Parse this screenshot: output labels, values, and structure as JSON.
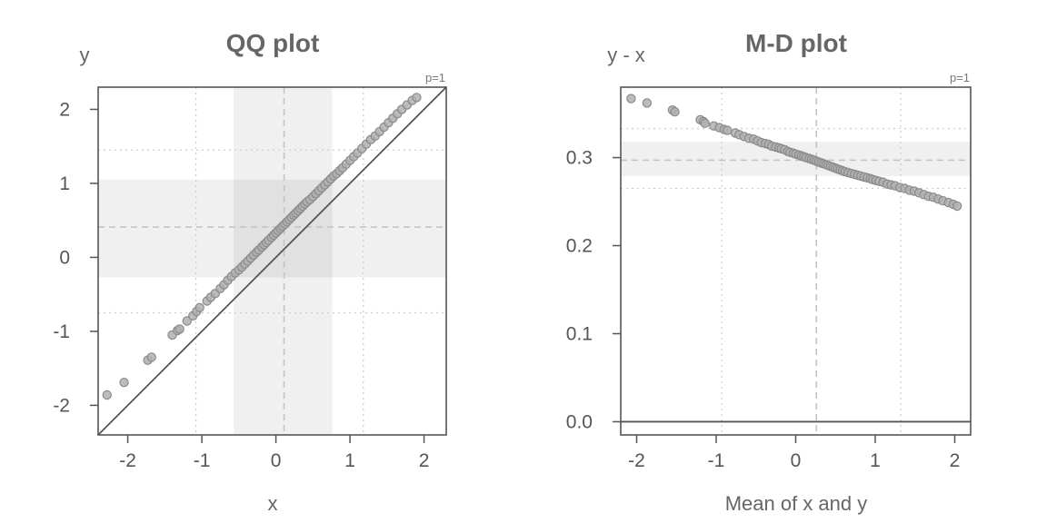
{
  "chart_data": [
    {
      "type": "scatter",
      "title": "QQ plot",
      "xlabel": "x",
      "ylabel": "y",
      "corner_label": "p=1",
      "xlim": [
        -2.4,
        2.3
      ],
      "ylim": [
        -2.4,
        2.3
      ],
      "x_ticks": [
        -2,
        -1,
        0,
        1,
        2
      ],
      "y_ticks": [
        -2,
        -1,
        0,
        1,
        2
      ],
      "x_tick_labels": [
        "-2",
        "-1",
        "0",
        "1",
        "2"
      ],
      "y_tick_labels": [
        "-2",
        "-1",
        "0",
        "1",
        "2"
      ],
      "reference_line": "y = x",
      "x_mean": 0.11,
      "x_quartile_band": [
        -0.57,
        0.76
      ],
      "x_dotted_lines": [
        -1.08,
        1.18
      ],
      "y_mean": 0.41,
      "y_quartile_band": [
        -0.27,
        1.05
      ],
      "y_dotted_lines": [
        -0.75,
        1.45
      ],
      "colors": {
        "point": "#b0b0b0",
        "point_edge": "#8a8a8a",
        "band": "#f0f0f0",
        "frame": "#555555"
      },
      "x": [
        -2.28,
        -2.05,
        -1.73,
        -1.68,
        -1.4,
        -1.33,
        -1.3,
        -1.2,
        -1.12,
        -1.07,
        -1.03,
        -0.93,
        -0.88,
        -0.82,
        -0.75,
        -0.7,
        -0.65,
        -0.6,
        -0.55,
        -0.5,
        -0.46,
        -0.42,
        -0.38,
        -0.34,
        -0.3,
        -0.26,
        -0.23,
        -0.19,
        -0.16,
        -0.13,
        -0.1,
        -0.06,
        -0.03,
        0.0,
        0.03,
        0.06,
        0.09,
        0.12,
        0.15,
        0.18,
        0.21,
        0.24,
        0.27,
        0.3,
        0.33,
        0.36,
        0.39,
        0.42,
        0.46,
        0.5,
        0.54,
        0.58,
        0.62,
        0.66,
        0.7,
        0.74,
        0.78,
        0.82,
        0.86,
        0.9,
        0.95,
        1.0,
        1.05,
        1.1,
        1.16,
        1.22,
        1.28,
        1.34,
        1.4,
        1.46,
        1.52,
        1.58,
        1.64,
        1.7,
        1.77,
        1.84,
        1.9
      ],
      "y": [
        -1.86,
        -1.69,
        -1.39,
        -1.35,
        -1.05,
        -0.99,
        -0.97,
        -0.86,
        -0.79,
        -0.73,
        -0.68,
        -0.59,
        -0.54,
        -0.49,
        -0.42,
        -0.37,
        -0.31,
        -0.26,
        -0.21,
        -0.17,
        -0.13,
        -0.09,
        -0.05,
        -0.01,
        0.03,
        0.07,
        0.1,
        0.14,
        0.17,
        0.2,
        0.23,
        0.27,
        0.3,
        0.33,
        0.36,
        0.39,
        0.42,
        0.45,
        0.48,
        0.51,
        0.54,
        0.57,
        0.6,
        0.63,
        0.66,
        0.69,
        0.72,
        0.75,
        0.78,
        0.82,
        0.86,
        0.9,
        0.94,
        0.98,
        1.02,
        1.06,
        1.1,
        1.13,
        1.17,
        1.21,
        1.26,
        1.31,
        1.36,
        1.41,
        1.47,
        1.53,
        1.59,
        1.64,
        1.7,
        1.76,
        1.82,
        1.88,
        1.94,
        2.0,
        2.06,
        2.12,
        2.16
      ]
    },
    {
      "type": "scatter",
      "title": "M-D plot",
      "xlabel": "Mean of x and y",
      "ylabel": "y - x",
      "corner_label": "p=1",
      "xlim": [
        -2.2,
        2.2
      ],
      "ylim": [
        -0.015,
        0.38
      ],
      "x_ticks": [
        -2,
        -1,
        0,
        1,
        2
      ],
      "y_ticks": [
        0.0,
        0.1,
        0.2,
        0.3
      ],
      "x_tick_labels": [
        "-2",
        "-1",
        "0",
        "1",
        "2"
      ],
      "y_tick_labels": [
        "0.0",
        "0.1",
        "0.2",
        "0.3"
      ],
      "reference_line": "y = 0",
      "x_mean": 0.26,
      "x_dotted_lines": [
        -0.93,
        1.32
      ],
      "y_mean": 0.297,
      "y_quartile_band": [
        0.279,
        0.318
      ],
      "y_dotted_lines": [
        0.265,
        0.333
      ],
      "colors": {
        "point": "#b0b0b0",
        "point_edge": "#8a8a8a",
        "band": "#f0f0f0",
        "frame": "#555555"
      },
      "x": [
        -2.07,
        -1.87,
        -1.55,
        -1.52,
        -1.2,
        -1.16,
        -1.14,
        -1.03,
        -0.96,
        -0.9,
        -0.86,
        -0.76,
        -0.71,
        -0.65,
        -0.59,
        -0.53,
        -0.48,
        -0.43,
        -0.38,
        -0.34,
        -0.3,
        -0.25,
        -0.21,
        -0.18,
        -0.14,
        -0.1,
        -0.07,
        -0.03,
        0.0,
        0.04,
        0.07,
        0.1,
        0.13,
        0.17,
        0.2,
        0.23,
        0.26,
        0.29,
        0.32,
        0.35,
        0.38,
        0.41,
        0.44,
        0.47,
        0.5,
        0.53,
        0.56,
        0.59,
        0.62,
        0.66,
        0.7,
        0.74,
        0.78,
        0.82,
        0.86,
        0.9,
        0.94,
        0.97,
        1.01,
        1.05,
        1.1,
        1.15,
        1.2,
        1.25,
        1.31,
        1.37,
        1.43,
        1.49,
        1.55,
        1.61,
        1.67,
        1.73,
        1.79,
        1.85,
        1.92,
        1.98,
        2.03
      ],
      "y": [
        0.367,
        0.362,
        0.354,
        0.352,
        0.343,
        0.341,
        0.339,
        0.336,
        0.334,
        0.332,
        0.331,
        0.328,
        0.326,
        0.324,
        0.322,
        0.321,
        0.319,
        0.317,
        0.316,
        0.315,
        0.313,
        0.312,
        0.311,
        0.31,
        0.309,
        0.307,
        0.306,
        0.305,
        0.304,
        0.303,
        0.302,
        0.301,
        0.3,
        0.299,
        0.298,
        0.297,
        0.296,
        0.295,
        0.294,
        0.293,
        0.292,
        0.291,
        0.29,
        0.289,
        0.288,
        0.287,
        0.286,
        0.285,
        0.284,
        0.283,
        0.282,
        0.281,
        0.28,
        0.279,
        0.278,
        0.277,
        0.276,
        0.275,
        0.274,
        0.273,
        0.272,
        0.27,
        0.269,
        0.268,
        0.266,
        0.265,
        0.263,
        0.262,
        0.26,
        0.258,
        0.256,
        0.255,
        0.253,
        0.251,
        0.249,
        0.247,
        0.245
      ]
    }
  ]
}
